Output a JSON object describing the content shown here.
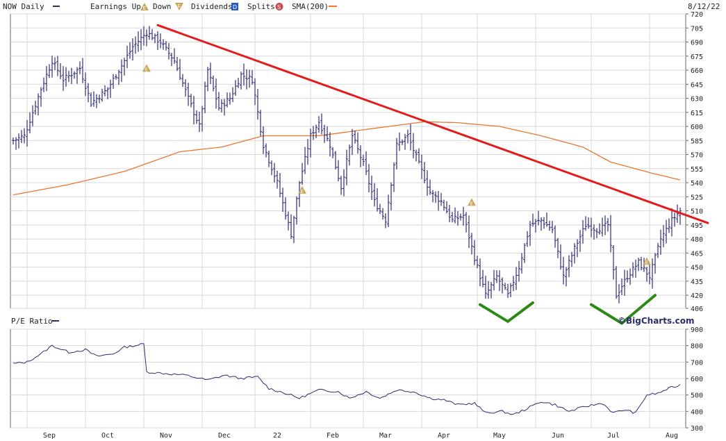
{
  "chart_data": [
    {
      "type": "bar",
      "style": "ohlc-daily",
      "legend": {
        "series": "NOW Daily",
        "earnings_up": "Earnings Up",
        "down": "Down",
        "dividends": "Dividends",
        "splits": "Splits",
        "sma": "SMA(200)",
        "date": "8/12/22"
      },
      "watermark": "©BigCharts.com",
      "ylim": [
        406,
        720
      ],
      "y_ticks": [
        406,
        420,
        435,
        450,
        465,
        480,
        495,
        510,
        525,
        540,
        555,
        570,
        585,
        600,
        615,
        630,
        645,
        660,
        675,
        690,
        705,
        720
      ],
      "x_month_labels": [
        "Sep",
        "Oct",
        "Nov",
        "Dec",
        "22",
        "Feb",
        "Mar",
        "Apr",
        "May",
        "Jun",
        "Jul",
        "Aug"
      ],
      "x_month_start_index": [
        5,
        26,
        47,
        68,
        87,
        107,
        126,
        147,
        167,
        188,
        208,
        229
      ],
      "price_keyframes": [
        {
          "i": 0,
          "p": 585
        },
        {
          "i": 4,
          "p": 590
        },
        {
          "i": 10,
          "p": 640
        },
        {
          "i": 14,
          "p": 670
        },
        {
          "i": 18,
          "p": 650
        },
        {
          "i": 24,
          "p": 662
        },
        {
          "i": 28,
          "p": 625
        },
        {
          "i": 34,
          "p": 640
        },
        {
          "i": 38,
          "p": 660
        },
        {
          "i": 43,
          "p": 685
        },
        {
          "i": 48,
          "p": 700
        },
        {
          "i": 53,
          "p": 690
        },
        {
          "i": 58,
          "p": 670
        },
        {
          "i": 63,
          "p": 630
        },
        {
          "i": 67,
          "p": 600
        },
        {
          "i": 70,
          "p": 660
        },
        {
          "i": 74,
          "p": 620
        },
        {
          "i": 78,
          "p": 630
        },
        {
          "i": 82,
          "p": 655
        },
        {
          "i": 86,
          "p": 650
        },
        {
          "i": 90,
          "p": 580
        },
        {
          "i": 95,
          "p": 540
        },
        {
          "i": 100,
          "p": 485
        },
        {
          "i": 103,
          "p": 540
        },
        {
          "i": 107,
          "p": 590
        },
        {
          "i": 110,
          "p": 605
        },
        {
          "i": 114,
          "p": 580
        },
        {
          "i": 118,
          "p": 535
        },
        {
          "i": 122,
          "p": 590
        },
        {
          "i": 126,
          "p": 560
        },
        {
          "i": 130,
          "p": 520
        },
        {
          "i": 134,
          "p": 500
        },
        {
          "i": 138,
          "p": 580
        },
        {
          "i": 142,
          "p": 590
        },
        {
          "i": 146,
          "p": 560
        },
        {
          "i": 150,
          "p": 530
        },
        {
          "i": 154,
          "p": 520
        },
        {
          "i": 158,
          "p": 500
        },
        {
          "i": 162,
          "p": 505
        },
        {
          "i": 166,
          "p": 460
        },
        {
          "i": 170,
          "p": 420
        },
        {
          "i": 174,
          "p": 440
        },
        {
          "i": 178,
          "p": 420
        },
        {
          "i": 182,
          "p": 450
        },
        {
          "i": 186,
          "p": 495
        },
        {
          "i": 190,
          "p": 500
        },
        {
          "i": 194,
          "p": 490
        },
        {
          "i": 198,
          "p": 440
        },
        {
          "i": 202,
          "p": 470
        },
        {
          "i": 206,
          "p": 495
        },
        {
          "i": 210,
          "p": 490
        },
        {
          "i": 214,
          "p": 495
        },
        {
          "i": 217,
          "p": 420
        },
        {
          "i": 221,
          "p": 440
        },
        {
          "i": 225,
          "p": 455
        },
        {
          "i": 229,
          "p": 440
        },
        {
          "i": 233,
          "p": 480
        },
        {
          "i": 237,
          "p": 500
        },
        {
          "i": 240,
          "p": 510
        }
      ],
      "sma_keyframes": [
        {
          "i": 0,
          "p": 527
        },
        {
          "i": 20,
          "p": 538
        },
        {
          "i": 40,
          "p": 552
        },
        {
          "i": 60,
          "p": 573
        },
        {
          "i": 75,
          "p": 578
        },
        {
          "i": 90,
          "p": 590
        },
        {
          "i": 110,
          "p": 590
        },
        {
          "i": 130,
          "p": 598
        },
        {
          "i": 148,
          "p": 605
        },
        {
          "i": 160,
          "p": 604
        },
        {
          "i": 175,
          "p": 600
        },
        {
          "i": 190,
          "p": 590
        },
        {
          "i": 205,
          "p": 578
        },
        {
          "i": 215,
          "p": 562
        },
        {
          "i": 230,
          "p": 550
        },
        {
          "i": 240,
          "p": 543
        }
      ],
      "earnings_markers": [
        {
          "i": 48,
          "p": 662
        },
        {
          "i": 104,
          "p": 532
        },
        {
          "i": 165,
          "p": 519
        },
        {
          "i": 228,
          "p": 456
        }
      ],
      "annotations": [
        {
          "kind": "trendline",
          "color": "#e31b1b",
          "from": {
            "i": 52,
            "p": 708
          },
          "to": {
            "i": 250,
            "p": 497
          }
        },
        {
          "kind": "check-mark",
          "color": "#2a8a14",
          "points": [
            {
              "i": 168,
              "p": 410
            },
            {
              "i": 178,
              "p": 392
            },
            {
              "i": 187,
              "p": 412
            }
          ]
        },
        {
          "kind": "check-mark",
          "color": "#2a8a14",
          "points": [
            {
              "i": 208,
              "p": 410
            },
            {
              "i": 219,
              "p": 390
            },
            {
              "i": 231,
              "p": 420
            }
          ]
        }
      ]
    },
    {
      "type": "line",
      "legend": {
        "series": "P/E Ratio"
      },
      "ylim": [
        300,
        900
      ],
      "y_ticks": [
        300,
        400,
        500,
        600,
        700,
        800,
        900
      ],
      "pe_keyframes": [
        {
          "i": 0,
          "v": 690
        },
        {
          "i": 5,
          "v": 700
        },
        {
          "i": 10,
          "v": 750
        },
        {
          "i": 14,
          "v": 800
        },
        {
          "i": 20,
          "v": 760
        },
        {
          "i": 26,
          "v": 775
        },
        {
          "i": 30,
          "v": 735
        },
        {
          "i": 36,
          "v": 750
        },
        {
          "i": 40,
          "v": 790
        },
        {
          "i": 47,
          "v": 810
        },
        {
          "i": 48,
          "v": 640
        },
        {
          "i": 55,
          "v": 630
        },
        {
          "i": 62,
          "v": 620
        },
        {
          "i": 70,
          "v": 590
        },
        {
          "i": 76,
          "v": 620
        },
        {
          "i": 82,
          "v": 600
        },
        {
          "i": 88,
          "v": 610
        },
        {
          "i": 92,
          "v": 540
        },
        {
          "i": 98,
          "v": 510
        },
        {
          "i": 103,
          "v": 480
        },
        {
          "i": 110,
          "v": 530
        },
        {
          "i": 117,
          "v": 520
        },
        {
          "i": 121,
          "v": 480
        },
        {
          "i": 127,
          "v": 520
        },
        {
          "i": 132,
          "v": 480
        },
        {
          "i": 138,
          "v": 530
        },
        {
          "i": 144,
          "v": 520
        },
        {
          "i": 150,
          "v": 480
        },
        {
          "i": 155,
          "v": 470
        },
        {
          "i": 160,
          "v": 440
        },
        {
          "i": 166,
          "v": 450
        },
        {
          "i": 170,
          "v": 390
        },
        {
          "i": 176,
          "v": 400
        },
        {
          "i": 180,
          "v": 380
        },
        {
          "i": 184,
          "v": 410
        },
        {
          "i": 190,
          "v": 460
        },
        {
          "i": 195,
          "v": 440
        },
        {
          "i": 200,
          "v": 400
        },
        {
          "i": 206,
          "v": 430
        },
        {
          "i": 212,
          "v": 450
        },
        {
          "i": 216,
          "v": 390
        },
        {
          "i": 220,
          "v": 410
        },
        {
          "i": 224,
          "v": 390
        },
        {
          "i": 228,
          "v": 500
        },
        {
          "i": 232,
          "v": 510
        },
        {
          "i": 236,
          "v": 540
        },
        {
          "i": 240,
          "v": 560
        }
      ]
    }
  ]
}
